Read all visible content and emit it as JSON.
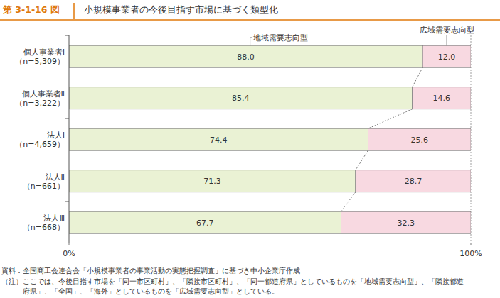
{
  "chart_data": {
    "type": "bar",
    "orientation": "horizontal",
    "stacked": true,
    "data_labels": true,
    "figure_number": "第 3-1-16 図",
    "title": "小規模事業者の今後目指す市場に基づく類型化",
    "categories": [
      "個人事業者Ⅰ\n（n=5,309）",
      "個人事業者Ⅱ\n（n=3,222）",
      "法人Ⅰ\n（n=4,659）",
      "法人Ⅱ\n（n=661）",
      "法人Ⅲ\n（n=668）"
    ],
    "series": [
      {
        "name": "地域需要志向型",
        "color": "#eaf2d4",
        "values": [
          88.0,
          85.4,
          74.4,
          71.3,
          67.7
        ],
        "value_labels": [
          "88.0",
          "85.4",
          "74.4",
          "71.3",
          "67.7"
        ]
      },
      {
        "name": "広域需要志向型",
        "color": "#f8d9e1",
        "values": [
          12.0,
          14.6,
          25.6,
          28.7,
          32.3
        ],
        "value_labels": [
          "12.0",
          "14.6",
          "25.6",
          "28.7",
          "32.3"
        ]
      }
    ],
    "xlim": [
      0,
      100
    ],
    "xticks": [
      {
        "value": 0,
        "label": "0%"
      },
      {
        "value": 100,
        "label": "100%"
      }
    ],
    "source": "資料：全国商工会連合会「小規模事業者の事業活動の実態把握調査」に基づき中小企業庁作成",
    "note": [
      "（注）ここでは、今後目指す市場を「同一市区町村」、「隣接市区町村」、「同一都道府県」としているものを「地域需要志向型」、「隣接都道",
      "　　　府県」、「全国」、「海外」としているものを「広域需要志向型」としている。"
    ]
  }
}
